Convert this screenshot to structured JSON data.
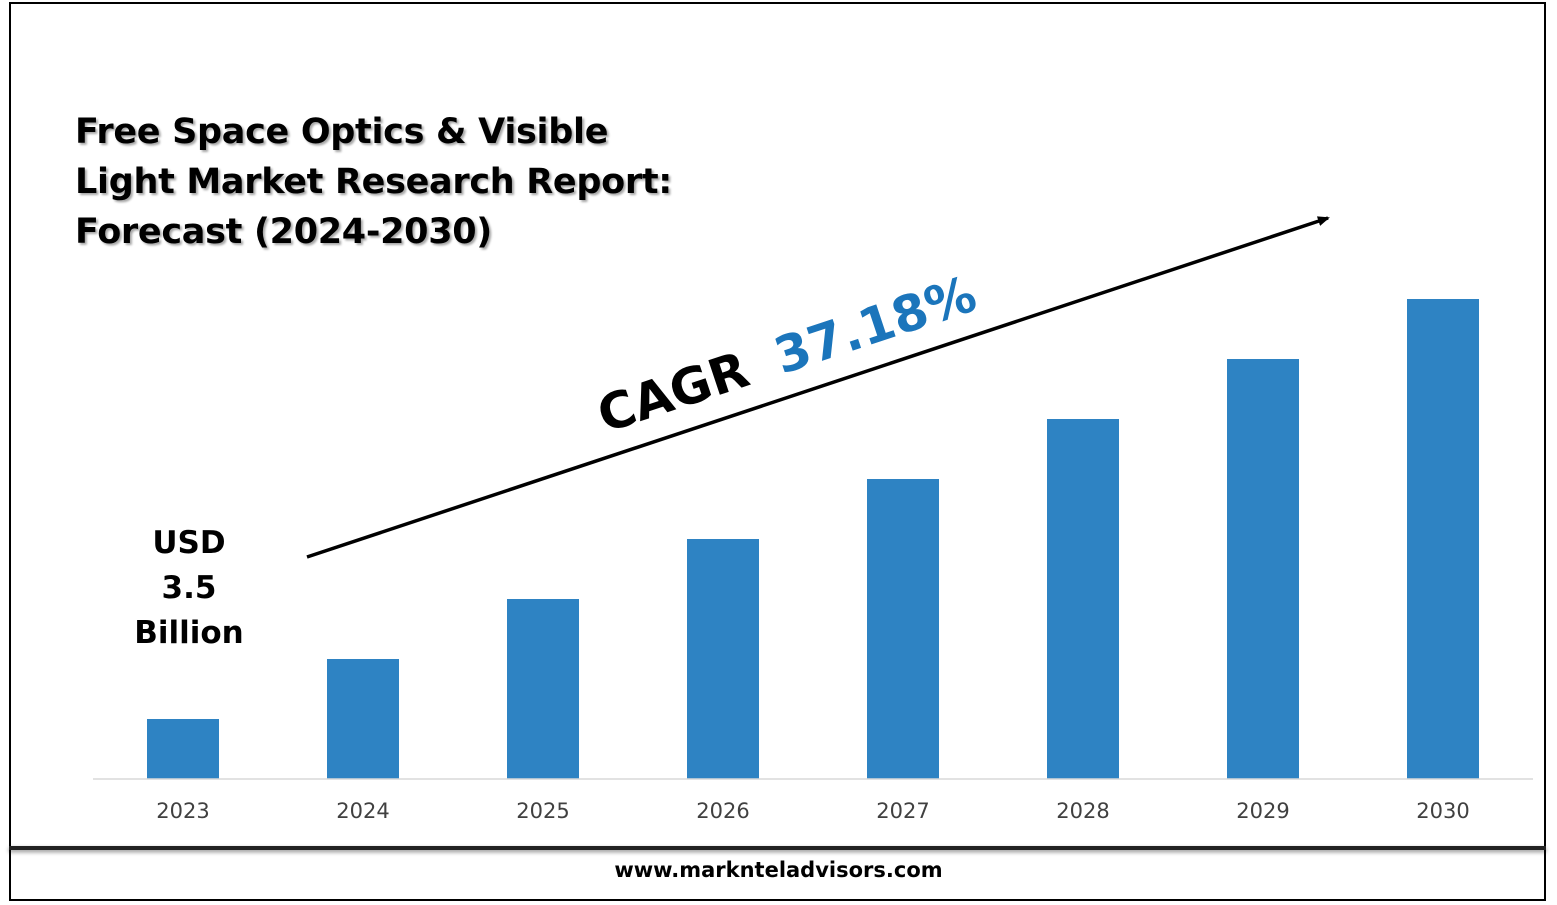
{
  "title_lines": [
    "Free Space Optics & Visible",
    "Light Market Research Report:",
    "Forecast (2024-2030)"
  ],
  "footer": {
    "url": "www.marknteladvisors.com"
  },
  "colors": {
    "bar": "#2E83C3",
    "accent": "#1B75BB",
    "text": "#000000",
    "tick": "#404040",
    "axis": "#D9D9D9"
  },
  "annotations": {
    "start_value_lines": [
      "USD",
      "3.5",
      "Billion"
    ],
    "cagr_label": "CAGR",
    "cagr_value": "37.18%"
  },
  "chart_data": {
    "type": "bar",
    "categories": [
      "2023",
      "2024",
      "2025",
      "2026",
      "2027",
      "2028",
      "2029",
      "2030"
    ],
    "values": [
      1,
      2,
      3,
      4,
      5,
      6,
      7,
      8
    ],
    "ylim": [
      0,
      9
    ],
    "grid": false,
    "legend": "none",
    "xlabel": "",
    "ylabel": ""
  }
}
